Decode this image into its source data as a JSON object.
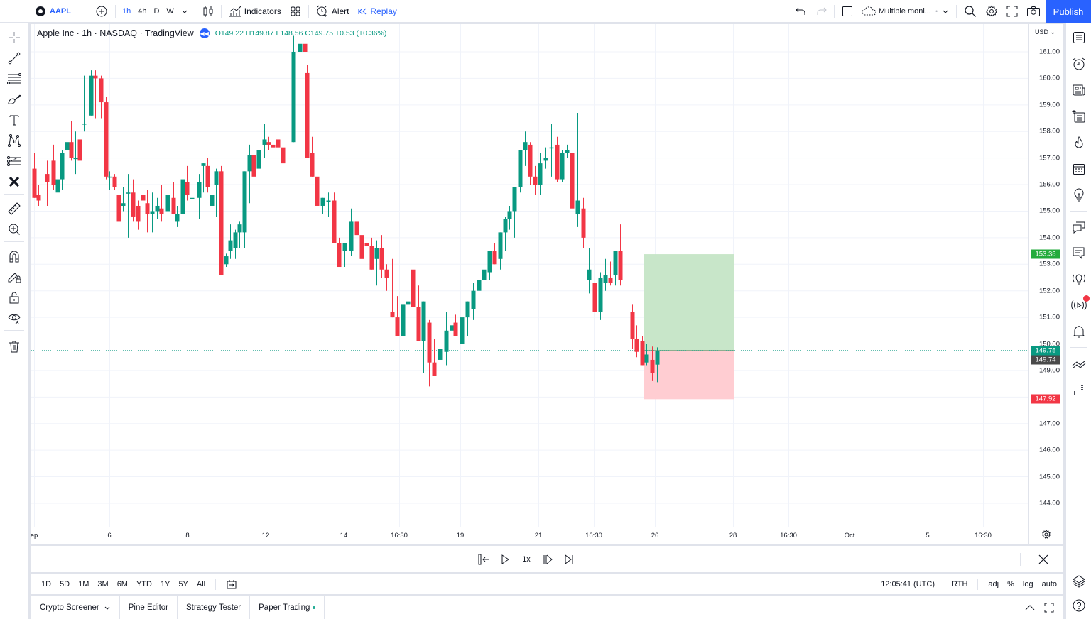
{
  "topbar": {
    "symbol": "AAPL",
    "intervals": [
      "1h",
      "4h",
      "D",
      "W"
    ],
    "active_interval": "1h",
    "indicators_label": "Indicators",
    "alert_label": "Alert",
    "replay_label": "Replay",
    "layout_name": "Multiple moni...",
    "publish_label": "Publish"
  },
  "legend": {
    "title": "Apple Inc · 1h · NASDAQ · TradingView",
    "ohlc": "O149.22 H149.87 L148.56 C149.75 +0.53 (+0.36%)"
  },
  "price_axis": {
    "currency": "USD",
    "ticks": [
      "161.00",
      "160.00",
      "159.00",
      "158.00",
      "157.00",
      "156.00",
      "155.00",
      "154.00",
      "153.00",
      "152.00",
      "151.00",
      "150.00",
      "149.00",
      "147.00",
      "146.00",
      "145.00",
      "144.00"
    ],
    "labels": [
      {
        "value": "153.38",
        "color": "#089981",
        "bg": "#22ab3b"
      },
      {
        "value": "149.75",
        "bg": "#089981"
      },
      {
        "value": "149.74",
        "bg": "#4a4a4a"
      },
      {
        "value": "147.92",
        "bg": "#f23645"
      }
    ]
  },
  "time_axis": {
    "ticks": [
      {
        "label": "ep",
        "x": 4
      },
      {
        "label": "6",
        "x": 110
      },
      {
        "label": "8",
        "x": 220
      },
      {
        "label": "12",
        "x": 330
      },
      {
        "label": "14",
        "x": 440
      },
      {
        "label": "16:30",
        "x": 518
      },
      {
        "label": "19",
        "x": 604
      },
      {
        "label": "21",
        "x": 714
      },
      {
        "label": "16:30",
        "x": 792
      },
      {
        "label": "26",
        "x": 878
      },
      {
        "label": "28",
        "x": 988
      },
      {
        "label": "16:30",
        "x": 1066
      },
      {
        "label": "Oct",
        "x": 1152
      },
      {
        "label": "5",
        "x": 1262
      },
      {
        "label": "16:30",
        "x": 1340
      }
    ]
  },
  "replay_controls": {
    "speed": "1x"
  },
  "range_bar": {
    "ranges": [
      "1D",
      "5D",
      "1M",
      "3M",
      "6M",
      "YTD",
      "1Y",
      "5Y",
      "All"
    ],
    "clock": "12:05:41 (UTC)",
    "session": "RTH",
    "options": [
      "adj",
      "%",
      "log",
      "auto"
    ]
  },
  "bottom_tabs": [
    {
      "label": "Crypto Screener",
      "has_dropdown": true
    },
    {
      "label": "Pine Editor"
    },
    {
      "label": "Strategy Tester"
    },
    {
      "label": "Paper Trading",
      "dot": "#22ab94"
    }
  ],
  "colors": {
    "up": "#089981",
    "down": "#f23645",
    "accent": "#2962ff",
    "profit_zone": "#c8e6c9",
    "loss_zone": "#ffcdd2"
  },
  "chart_data": {
    "type": "candlestick",
    "title": "Apple Inc · 1h · NASDAQ",
    "ylim": [
      143.3,
      161.8
    ],
    "position": {
      "entry": 149.75,
      "target": 153.38,
      "stop": 147.92,
      "x_start": 863,
      "x_end": 989
    },
    "candles": [
      [
        4,
        156.6,
        157.2,
        155.6,
        155.5
      ],
      [
        10,
        155.6,
        156.0,
        155.2,
        155.4
      ],
      [
        22,
        156.4,
        156.9,
        155.2,
        156.1
      ],
      [
        31,
        156.9,
        157.5,
        155.8,
        156.0
      ],
      [
        37,
        155.7,
        156.6,
        155.1,
        156.2
      ],
      [
        43,
        156.2,
        157.3,
        155.8,
        157.2
      ],
      [
        50,
        157.3,
        157.9,
        156.7,
        157.6
      ],
      [
        56,
        157.6,
        158.4,
        156.9,
        157.0
      ],
      [
        62,
        157.0,
        158.0,
        156.4,
        157.0
      ],
      [
        68,
        157.7,
        159.3,
        157.3,
        156.9
      ],
      [
        74,
        158.3,
        160.1,
        158.0,
        158.3
      ],
      [
        84,
        158.6,
        160.3,
        159.0,
        160.1
      ],
      [
        90,
        160.1,
        160.3,
        158.5,
        160.0
      ],
      [
        98,
        160.0,
        160.1,
        158.5,
        159.1
      ],
      [
        105,
        159.1,
        159.3,
        156.2,
        156.3
      ],
      [
        110,
        156.3,
        156.5,
        155.8,
        156.3
      ],
      [
        117,
        156.3,
        156.4,
        155.8,
        155.9
      ],
      [
        123,
        155.6,
        156.5,
        154.2,
        154.6
      ],
      [
        129,
        155.2,
        155.9,
        155.0,
        155.3
      ],
      [
        136,
        155.7,
        156.4,
        154.0,
        155.7
      ],
      [
        143,
        155.7,
        156.2,
        154.6,
        154.8
      ],
      [
        150,
        155.2,
        155.4,
        154.3,
        154.6
      ],
      [
        157,
        155.6,
        156.1,
        154.8,
        155.4
      ],
      [
        163,
        155.3,
        155.8,
        154.2,
        154.9
      ],
      [
        170,
        154.9,
        155.7,
        154.2,
        155.0
      ],
      [
        177,
        155.0,
        155.5,
        154.7,
        155.2
      ],
      [
        183,
        155.1,
        156.0,
        154.6,
        154.9
      ],
      [
        192,
        155.0,
        155.6,
        154.4,
        155.6
      ],
      [
        200,
        155.5,
        156.1,
        155.0,
        154.9
      ],
      [
        205,
        154.6,
        155.2,
        154.4,
        154.9
      ],
      [
        213,
        154.9,
        155.8,
        154.5,
        156.2
      ],
      [
        219,
        156.1,
        156.7,
        155.4,
        155.6
      ],
      [
        226,
        155.5,
        156.3,
        154.6,
        155.5
      ],
      [
        236,
        155.5,
        156.4,
        154.7,
        156.1
      ],
      [
        242,
        156.7,
        156.8,
        155.7,
        156.8
      ],
      [
        248,
        156.7,
        157.0,
        155.7,
        155.9
      ],
      [
        254,
        155.2,
        155.4,
        155.4,
        155.6
      ],
      [
        260,
        156.0,
        156.6,
        154.8,
        156.5
      ],
      [
        267,
        156.5,
        156.7,
        154.0,
        152.6
      ],
      [
        274,
        153.0,
        153.4,
        152.9,
        153.3
      ],
      [
        280,
        153.5,
        154.5,
        153.2,
        153.9
      ],
      [
        287,
        153.6,
        154.3,
        153.2,
        154.2
      ],
      [
        293,
        154.2,
        154.6,
        153.6,
        154.5
      ],
      [
        300,
        154.2,
        155.4,
        153.6,
        156.5
      ],
      [
        307,
        156.5,
        157.5,
        155.3,
        157.1
      ],
      [
        313,
        157.1,
        157.5,
        156.4,
        156.3
      ],
      [
        320,
        156.6,
        157.5,
        156.4,
        157.3
      ],
      [
        328,
        157.5,
        158.3,
        157.0,
        157.7
      ],
      [
        334,
        157.6,
        157.8,
        157.3,
        157.5
      ],
      [
        340,
        157.5,
        157.8,
        157.1,
        157.4
      ],
      [
        347,
        157.7,
        158.0,
        156.9,
        157.4
      ],
      [
        354,
        157.4,
        157.8,
        156.9,
        156.8
      ],
      [
        369,
        157.6,
        161.6,
        159.2,
        161.0
      ],
      [
        378,
        161.0,
        161.6,
        160.8,
        161.3
      ],
      [
        385,
        161.3,
        161.4,
        160.5,
        161.0
      ],
      [
        388,
        160.2,
        160.5,
        157.8,
        157.0
      ],
      [
        395,
        157.2,
        157.8,
        156.5,
        156.3
      ],
      [
        402,
        156.3,
        156.8,
        155.8,
        155.2
      ],
      [
        410,
        155.2,
        155.4,
        154.9,
        155.5
      ],
      [
        418,
        155.4,
        155.7,
        154.8,
        155.4
      ],
      [
        426,
        155.4,
        155.7,
        153.8,
        153.8
      ],
      [
        433,
        153.8,
        154.0,
        153.3,
        152.9
      ],
      [
        441,
        153.5,
        153.7,
        152.9,
        153.8
      ],
      [
        450,
        153.5,
        155.1,
        153.3,
        154.6
      ],
      [
        458,
        154.6,
        154.9,
        153.9,
        154.1
      ],
      [
        465,
        154.1,
        154.3,
        153.2,
        153.2
      ],
      [
        472,
        153.8,
        154.0,
        153.0,
        153.7
      ],
      [
        479,
        153.7,
        154.0,
        152.9,
        152.8
      ],
      [
        486,
        153.2,
        153.9,
        152.2,
        153.6
      ],
      [
        493,
        153.6,
        154.1,
        152.5,
        152.8
      ],
      [
        500,
        152.8,
        153.0,
        152.0,
        152.5
      ],
      [
        508,
        151.2,
        153.2,
        151.7,
        151.0
      ],
      [
        515,
        151.0,
        151.8,
        150.5,
        150.3
      ],
      [
        523,
        150.3,
        151.2,
        150.0,
        151.5
      ],
      [
        530,
        151.5,
        152.7,
        151.0,
        151.6
      ],
      [
        537,
        152.8,
        153.6,
        151.3,
        151.4
      ],
      [
        545,
        151.4,
        152.2,
        150.6,
        150.1
      ],
      [
        552,
        150.1,
        150.4,
        148.9,
        151.6
      ],
      [
        560,
        150.8,
        150.9,
        148.4,
        149.3
      ],
      [
        567,
        149.3,
        150.2,
        148.8,
        148.8
      ],
      [
        575,
        149.4,
        150.3,
        149.0,
        149.8
      ],
      [
        584,
        149.7,
        151.2,
        149.2,
        150.5
      ],
      [
        592,
        150.5,
        151.4,
        150.1,
        150.7
      ],
      [
        597,
        150.8,
        151.1,
        150.4,
        150.3
      ],
      [
        606,
        150.0,
        151.1,
        149.4,
        151.0
      ],
      [
        614,
        151.0,
        151.3,
        150.3,
        151.6
      ],
      [
        622,
        151.3,
        152.3,
        150.9,
        152.0
      ],
      [
        630,
        152.0,
        152.5,
        151.5,
        152.4
      ],
      [
        637,
        152.4,
        153.3,
        152.0,
        152.8
      ],
      [
        645,
        152.7,
        153.2,
        152.4,
        153.5
      ],
      [
        652,
        153.5,
        153.8,
        153.0,
        153.0
      ],
      [
        660,
        153.2,
        154.0,
        152.8,
        154.2
      ],
      [
        667,
        154.2,
        154.8,
        153.5,
        154.7
      ],
      [
        673,
        154.7,
        155.2,
        154.3,
        155.0
      ],
      [
        680,
        155.0,
        155.6,
        154.0,
        155.9
      ],
      [
        688,
        155.9,
        157.0,
        155.7,
        157.3
      ],
      [
        695,
        157.3,
        158.0,
        156.7,
        157.6
      ],
      [
        702,
        157.5,
        157.6,
        156.0,
        156.3
      ],
      [
        709,
        156.3,
        156.7,
        155.6,
        156.0
      ],
      [
        716,
        156.0,
        157.2,
        155.6,
        156.8
      ],
      [
        724,
        156.9,
        157.4,
        156.6,
        157.0
      ],
      [
        732,
        157.4,
        158.3,
        156.3,
        157.4
      ],
      [
        740,
        157.5,
        157.8,
        156.1,
        156.2
      ],
      [
        747,
        156.2,
        157.3,
        156.1,
        157.2
      ],
      [
        754,
        157.2,
        157.5,
        157.0,
        157.3
      ],
      [
        761,
        157.2,
        157.6,
        156.0,
        155.1
      ],
      [
        769,
        154.9,
        158.7,
        154.4,
        155.4
      ],
      [
        777,
        155.1,
        155.5,
        153.6,
        154.0
      ],
      [
        785,
        152.4,
        153.6,
        151.9,
        152.8
      ],
      [
        793,
        152.3,
        153.2,
        150.9,
        151.2
      ],
      [
        801,
        151.2,
        152.7,
        150.9,
        152.5
      ],
      [
        808,
        152.3,
        153.2,
        152.0,
        152.6
      ],
      [
        815,
        152.5,
        153.1,
        152.2,
        152.3
      ],
      [
        822,
        152.6,
        153.5,
        152.2,
        153.5
      ],
      [
        829,
        153.5,
        154.5,
        152.2,
        152.4
      ],
      [
        846,
        151.2,
        151.5,
        149.8,
        150.2
      ],
      [
        852,
        150.2,
        150.7,
        149.5,
        149.7
      ],
      [
        860,
        150.1,
        150.3,
        149.4,
        149.2
      ],
      [
        866,
        149.3,
        150.0,
        149.2,
        149.6
      ],
      [
        874,
        149.4,
        149.9,
        148.6,
        148.9
      ],
      [
        881,
        149.22,
        149.87,
        148.56,
        149.75
      ]
    ]
  }
}
